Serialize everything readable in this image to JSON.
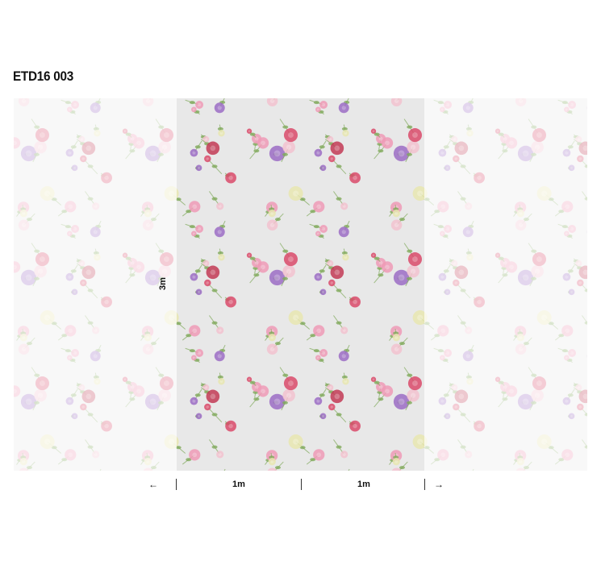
{
  "product": {
    "code": "ETD16 003"
  },
  "dimensions": {
    "height_label": "3m",
    "width_labels": [
      "1m",
      "1m"
    ],
    "left_arrow": "←",
    "right_arrow": "→"
  },
  "colors": {
    "panel_background": "#e8e8e8",
    "flowers": [
      "#d94a6a",
      "#9b6cc4",
      "#ee9ab6",
      "#c23a55",
      "#f2c2cf",
      "#e8e6b0"
    ],
    "leaf": "#7fa95a",
    "fade_overlay": "#ffffff"
  }
}
